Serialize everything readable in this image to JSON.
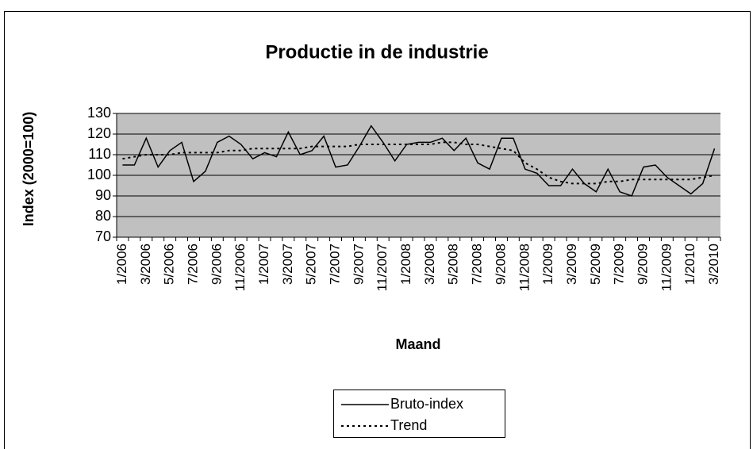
{
  "chart_data": {
    "type": "line",
    "title": "Productie in de industrie",
    "x_label": "Maand",
    "y_label": "Index (2000=100)",
    "categories": [
      "1/2006",
      null,
      "3/2006",
      null,
      "5/2006",
      null,
      "7/2006",
      null,
      "9/2006",
      null,
      "11/2006",
      null,
      "1/2007",
      null,
      "3/2007",
      null,
      "5/2007",
      null,
      "7/2007",
      null,
      "9/2007",
      null,
      "11/2007",
      null,
      "1/2008",
      null,
      "3/2008",
      null,
      "5/2008",
      null,
      "7/2008",
      null,
      "9/2008",
      null,
      "11/2008",
      null,
      "1/2009",
      null,
      "3/2009",
      null,
      "5/2009",
      null,
      "7/2009",
      null,
      "9/2009",
      null,
      "11/2009",
      null,
      "1/2010",
      null,
      "3/2010"
    ],
    "series": [
      {
        "name": "Bruto-index",
        "color": "#000000",
        "style": "solid",
        "values": [
          105,
          105,
          118,
          104,
          112,
          116,
          97,
          102,
          116,
          119,
          115,
          108,
          111,
          109,
          121,
          110,
          112,
          119,
          104,
          105,
          114,
          124,
          116,
          107,
          115,
          116,
          116,
          118,
          112,
          118,
          106,
          103,
          118,
          118,
          103,
          101,
          95,
          95,
          103,
          96,
          92,
          103,
          92,
          90,
          104,
          105,
          99,
          95,
          91,
          96,
          113
        ]
      },
      {
        "name": "Trend",
        "color": "#000000",
        "style": "dotted",
        "values": [
          108,
          109,
          110,
          110,
          110,
          111,
          111,
          111,
          111,
          112,
          112,
          113,
          113,
          113,
          113,
          113,
          114,
          114,
          114,
          114,
          115,
          115,
          115,
          115,
          115,
          115,
          115,
          116,
          116,
          115,
          115,
          114,
          113,
          112,
          106,
          103,
          99,
          97,
          96,
          96,
          96,
          97,
          97,
          98,
          98,
          98,
          98,
          98,
          98,
          99,
          100
        ]
      }
    ],
    "ylim": [
      70,
      130
    ],
    "yticks": [
      70,
      80,
      90,
      100,
      110,
      120,
      130
    ],
    "grid": true,
    "plot_background": "#c0c0c0",
    "legend": "bottom"
  }
}
